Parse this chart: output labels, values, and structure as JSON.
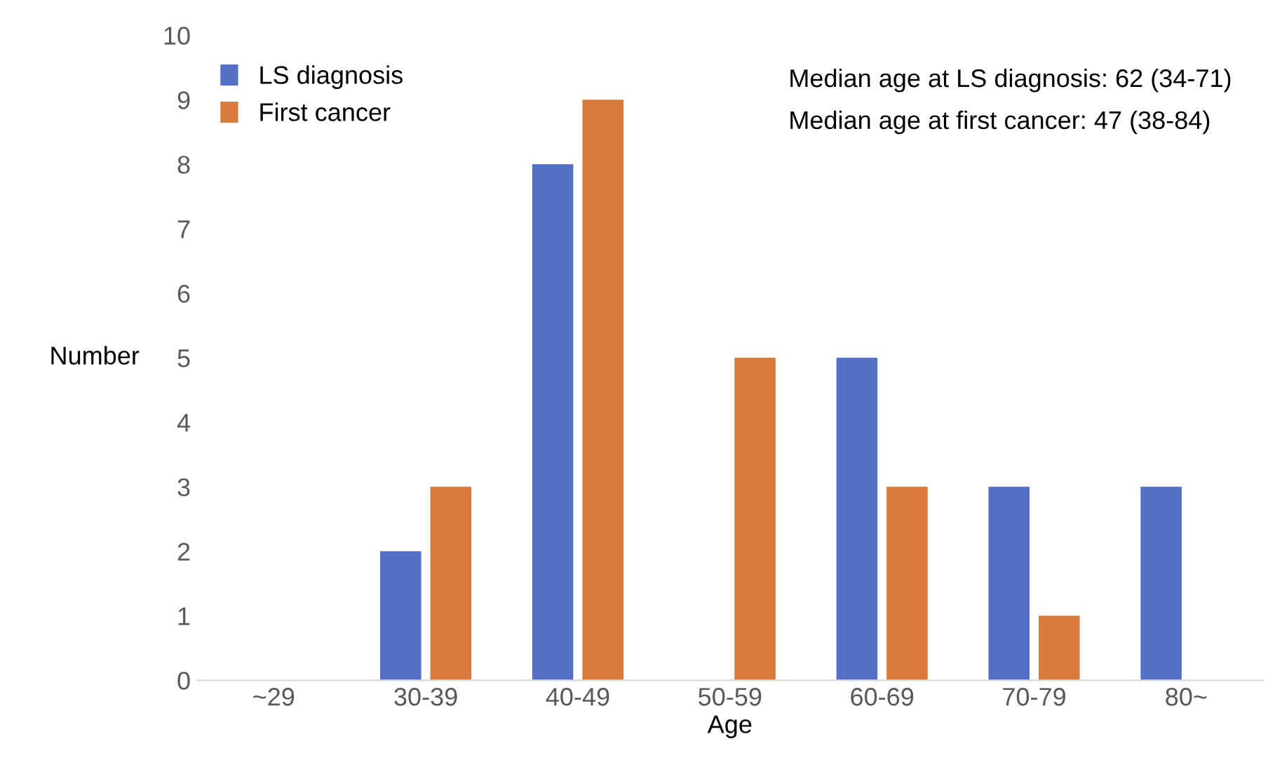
{
  "chart_data": {
    "type": "bar",
    "xlabel": "Age",
    "ylabel": "Number",
    "categories": [
      "~29",
      "30-39",
      "40-49",
      "50-59",
      "60-69",
      "70-79",
      "80~"
    ],
    "series": [
      {
        "name": "LS diagnosis",
        "color": "#5470c6",
        "values": [
          0,
          2,
          8,
          0,
          5,
          3,
          3
        ]
      },
      {
        "name": "First cancer",
        "color": "#d97b3a",
        "values": [
          0,
          3,
          9,
          5,
          3,
          1,
          0
        ]
      }
    ],
    "ylim": [
      0,
      10
    ],
    "yticks": [
      0,
      1,
      2,
      3,
      4,
      5,
      6,
      7,
      8,
      9,
      10
    ],
    "grid": false,
    "legend": "top left",
    "annotations": [
      "Median age at LS diagnosis: 62 (34-71)",
      "Median age at first cancer: 47 (38-84)"
    ]
  }
}
